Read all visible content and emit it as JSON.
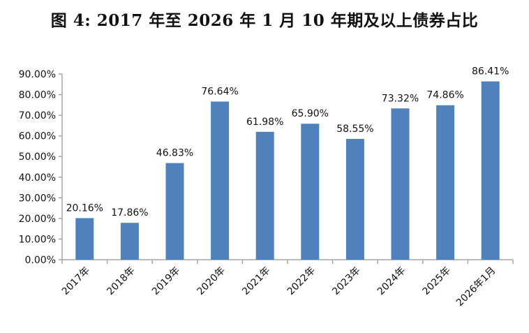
{
  "chart_data": {
    "type": "bar",
    "title": "图 4: 2017 年至 2026 年 1 月 10 年期及以上债券占比",
    "categories": [
      "2017年",
      "2018年",
      "2019年",
      "2020年",
      "2021年",
      "2022年",
      "2023年",
      "2024年",
      "2025年",
      "2026年1月"
    ],
    "values": [
      20.16,
      17.86,
      46.83,
      76.64,
      61.98,
      65.9,
      58.55,
      73.32,
      74.86,
      86.41
    ],
    "data_labels": [
      "20.16%",
      "17.86%",
      "46.83%",
      "76.64%",
      "61.98%",
      "65.90%",
      "58.55%",
      "73.32%",
      "74.86%",
      "86.41%"
    ],
    "ylim": [
      0,
      90
    ],
    "yticks": [
      "0.00%",
      "10.00%",
      "20.00%",
      "30.00%",
      "40.00%",
      "50.00%",
      "60.00%",
      "70.00%",
      "80.00%",
      "90.00%"
    ],
    "xlabel": "",
    "ylabel": "",
    "grid": false,
    "legend": "none",
    "bar_color": "#4F81BD",
    "axis_color": "#A6A6A6"
  }
}
